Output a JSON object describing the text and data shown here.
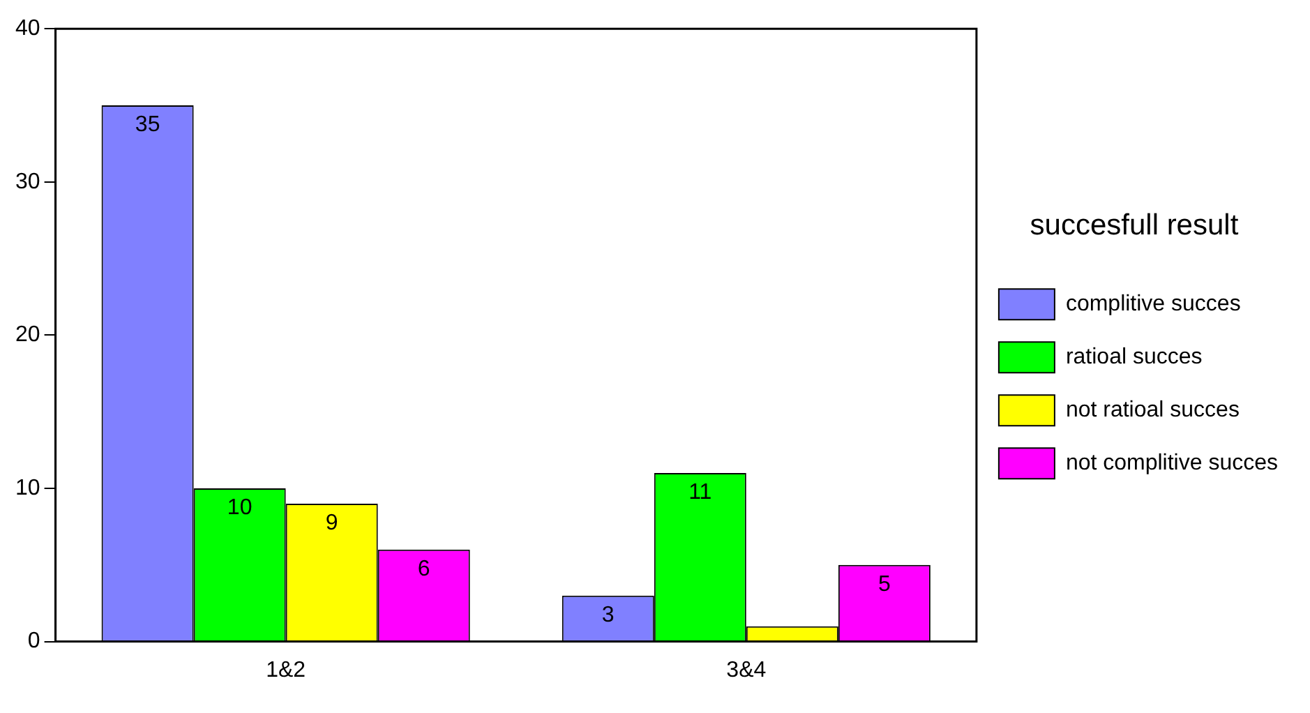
{
  "chart_data": {
    "type": "bar",
    "categories": [
      "1&2",
      "3&4"
    ],
    "legend_title": "succesfull result",
    "legend": "right",
    "grid": false,
    "ylim": [
      0,
      40
    ],
    "yticks": [
      0,
      10,
      20,
      30,
      40
    ],
    "series": [
      {
        "name": "complitive succes",
        "color": "#8080ff",
        "values": [
          35,
          3
        ],
        "value_labels": [
          "35",
          "3"
        ]
      },
      {
        "name": "ratioal succes",
        "color": "#00ff00",
        "values": [
          10,
          11
        ],
        "value_labels": [
          "10",
          "11"
        ]
      },
      {
        "name": "not ratioal succes",
        "color": "#ffff00",
        "values": [
          9,
          1
        ],
        "value_labels": [
          "9",
          null
        ]
      },
      {
        "name": "not complitive succes",
        "color": "#ff00ff",
        "values": [
          6,
          5
        ],
        "value_labels": [
          "6",
          "5"
        ]
      }
    ]
  }
}
